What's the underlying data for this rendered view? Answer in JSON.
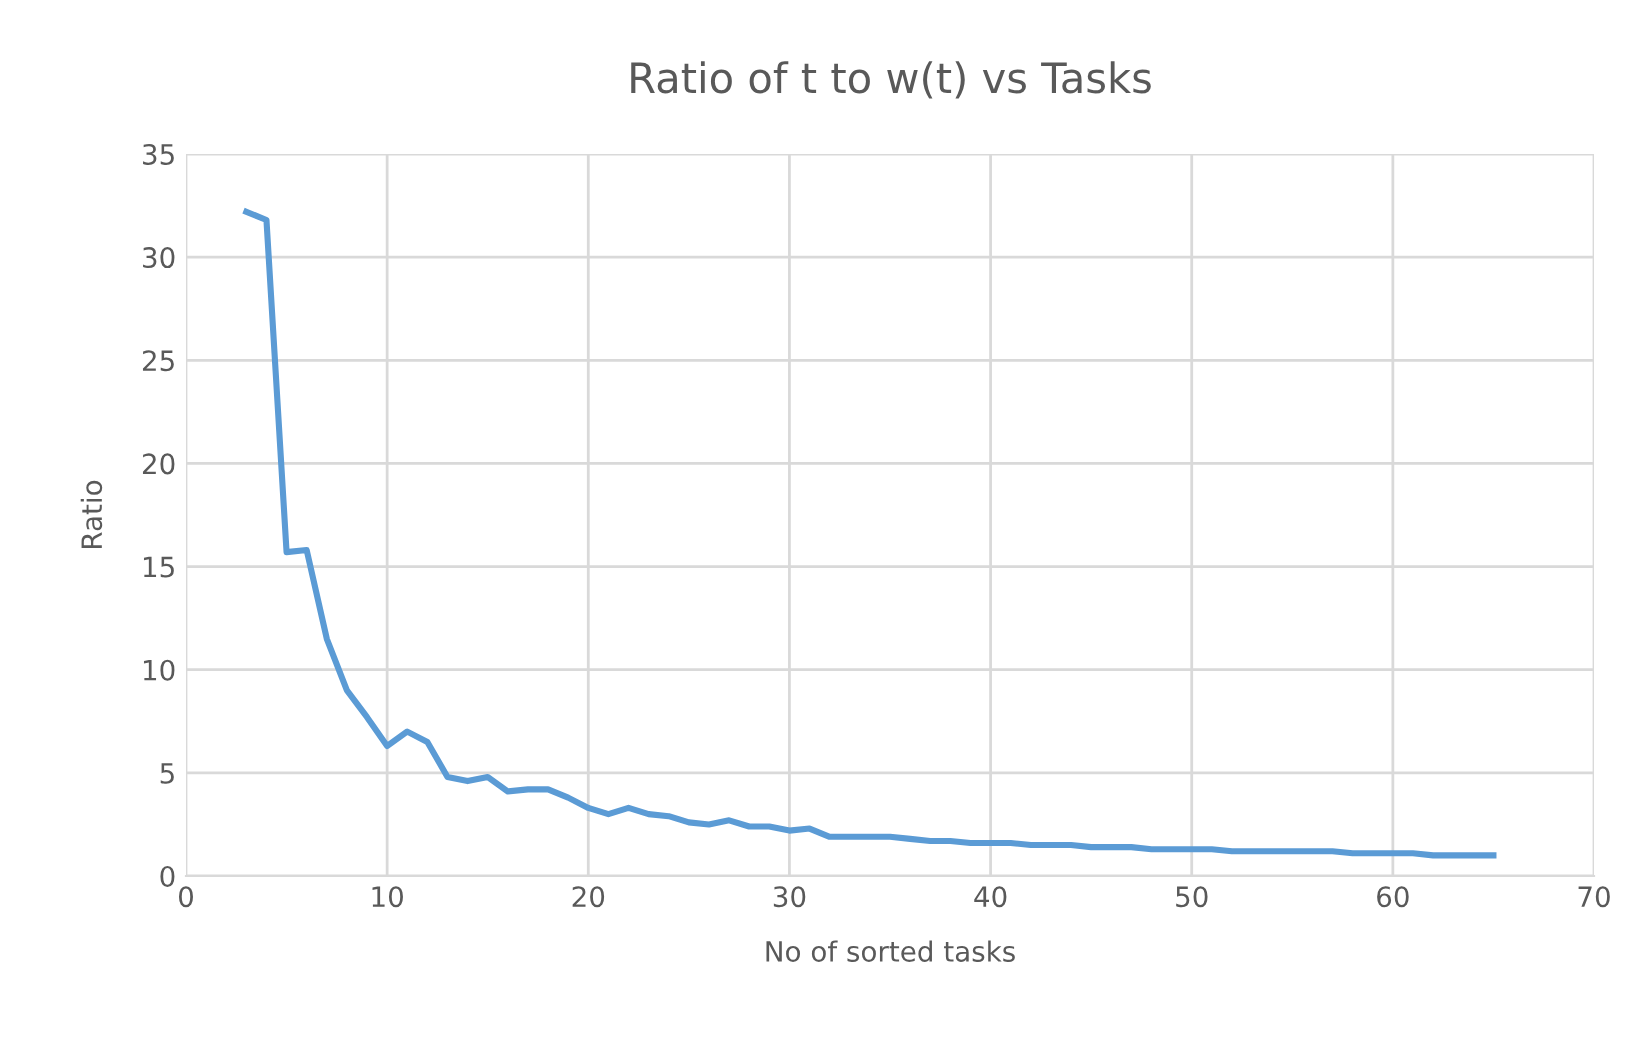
{
  "chart_data": {
    "type": "line",
    "title": "Ratio of t to w(t) vs Tasks",
    "xlabel": "No of sorted tasks",
    "ylabel": "Ratio",
    "x": [
      3,
      4,
      5,
      6,
      7,
      8,
      9,
      10,
      11,
      12,
      13,
      14,
      15,
      16,
      17,
      18,
      19,
      20,
      21,
      22,
      23,
      24,
      25,
      26,
      27,
      28,
      29,
      30,
      31,
      32,
      33,
      34,
      35,
      36,
      37,
      38,
      39,
      40,
      41,
      42,
      43,
      44,
      45,
      46,
      47,
      48,
      49,
      50,
      51,
      52,
      53,
      54,
      55,
      56,
      57,
      58,
      59,
      60,
      61,
      62,
      63,
      64,
      65
    ],
    "series": [
      {
        "color": "#5b9bd5",
        "values": [
          32.2,
          31.8,
          15.7,
          15.8,
          11.5,
          9.0,
          7.7,
          6.3,
          7.0,
          6.5,
          4.8,
          4.6,
          4.8,
          4.1,
          4.2,
          4.2,
          3.8,
          3.3,
          3.0,
          3.3,
          3.0,
          2.9,
          2.6,
          2.5,
          2.7,
          2.4,
          2.4,
          2.2,
          2.3,
          1.9,
          1.9,
          1.9,
          1.9,
          1.8,
          1.7,
          1.7,
          1.6,
          1.6,
          1.6,
          1.5,
          1.5,
          1.5,
          1.4,
          1.4,
          1.4,
          1.3,
          1.3,
          1.3,
          1.3,
          1.2,
          1.2,
          1.2,
          1.2,
          1.2,
          1.2,
          1.1,
          1.1,
          1.1,
          1.1,
          1.0,
          1.0,
          1.0,
          1.0
        ]
      }
    ],
    "xlim": [
      0,
      70
    ],
    "xticks": [
      0,
      10,
      20,
      30,
      40,
      50,
      60,
      70
    ],
    "ylim": [
      0,
      35
    ],
    "yticks": [
      0,
      5,
      10,
      15,
      20,
      25,
      30,
      35
    ],
    "grid": true,
    "marker": "none",
    "line_style": "solid"
  }
}
